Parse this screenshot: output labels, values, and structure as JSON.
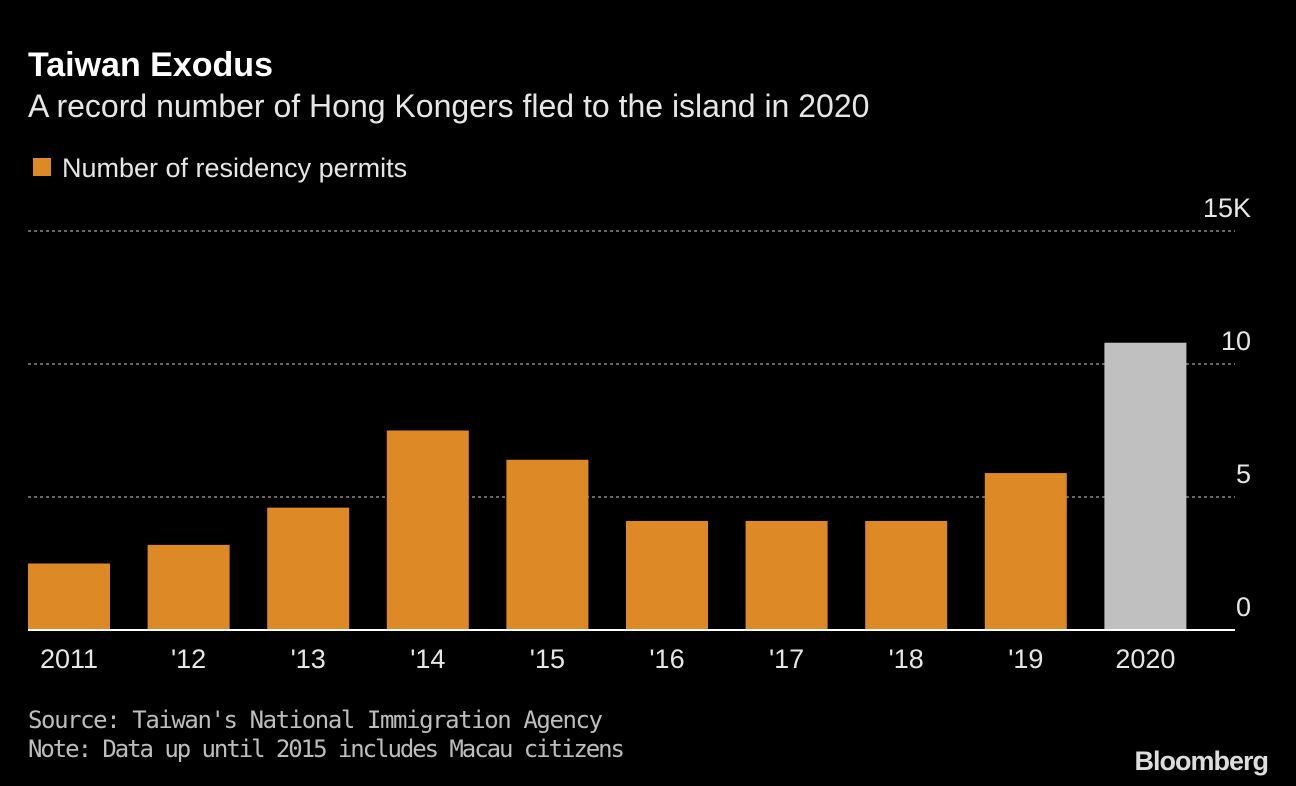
{
  "chart_data": {
    "type": "bar",
    "title": "Taiwan Exodus",
    "subtitle": "A record number of Hong Kongers fled to the island in 2020",
    "categories": [
      "2011",
      "'12",
      "'13",
      "'14",
      "'15",
      "'16",
      "'17",
      "'18",
      "'19",
      "2020"
    ],
    "series": [
      {
        "name": "Number of residency permits",
        "color": "#dd8a26",
        "values": [
          2.5,
          3.2,
          4.6,
          7.5,
          6.4,
          4.1,
          4.1,
          4.1,
          5.9,
          10.8
        ],
        "point_colors": [
          "#dd8a26",
          "#dd8a26",
          "#dd8a26",
          "#dd8a26",
          "#dd8a26",
          "#dd8a26",
          "#dd8a26",
          "#dd8a26",
          "#dd8a26",
          "#c0c0c0"
        ]
      }
    ],
    "ylim": [
      0,
      15
    ],
    "yticks": [
      0,
      5,
      10,
      {
        "value": 15,
        "label": "15K"
      }
    ],
    "grid": true,
    "source": "Source: Taiwan's National Immigration Agency",
    "note": "Note: Data up until 2015 includes Macau citizens",
    "brand": "Bloomberg"
  }
}
